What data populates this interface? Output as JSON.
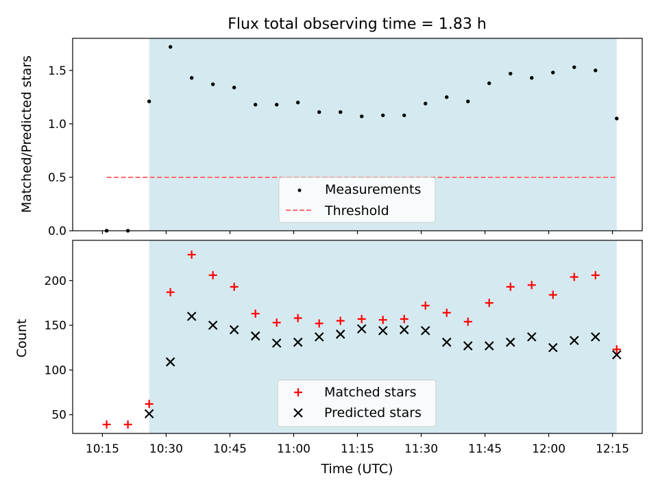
{
  "figure": {
    "title": "Flux total observing time = 1.83 h",
    "xlabel": "Time (UTC)",
    "x_ticks": [
      "10:15",
      "10:30",
      "10:45",
      "11:00",
      "11:15",
      "11:30",
      "11:45",
      "12:00",
      "12:15"
    ],
    "shaded_color": "#d5eaf0",
    "shaded_range": [
      "10:26",
      "12:16"
    ]
  },
  "chart_data": [
    {
      "type": "scatter",
      "panel": "top",
      "ylabel": "Matched/Predicted stars",
      "ylim": [
        0,
        1.8
      ],
      "y_ticks": [
        "0.0",
        "0.5",
        "1.0",
        "1.5"
      ],
      "legend_placement": "lower-center",
      "x": [
        "10:16",
        "10:21",
        "10:26",
        "10:31",
        "10:36",
        "10:41",
        "10:46",
        "10:51",
        "10:56",
        "11:01",
        "11:06",
        "11:11",
        "11:16",
        "11:21",
        "11:26",
        "11:31",
        "11:36",
        "11:41",
        "11:46",
        "11:51",
        "11:56",
        "12:01",
        "12:06",
        "12:11",
        "12:16"
      ],
      "series": [
        {
          "name": "Measurements",
          "marker": "dot",
          "color": "#000000",
          "values": [
            0.0,
            0.0,
            1.21,
            1.72,
            1.43,
            1.37,
            1.34,
            1.18,
            1.18,
            1.2,
            1.11,
            1.11,
            1.07,
            1.08,
            1.08,
            1.19,
            1.25,
            1.21,
            1.38,
            1.47,
            1.43,
            1.48,
            1.53,
            1.5,
            1.05
          ]
        },
        {
          "name": "Threshold",
          "marker": "dashed-line",
          "color": "#ff6b6b",
          "x": [
            "10:16",
            "12:16"
          ],
          "values": [
            0.5,
            0.5
          ]
        }
      ]
    },
    {
      "type": "scatter",
      "panel": "bottom",
      "ylabel": "Count",
      "ylim": [
        29,
        245
      ],
      "y_ticks": [
        "50",
        "100",
        "150",
        "200"
      ],
      "legend_placement": "lower-center",
      "x": [
        "10:16",
        "10:21",
        "10:26",
        "10:31",
        "10:36",
        "10:41",
        "10:46",
        "10:51",
        "10:56",
        "11:01",
        "11:06",
        "11:11",
        "11:16",
        "11:21",
        "11:26",
        "11:31",
        "11:36",
        "11:41",
        "11:46",
        "11:51",
        "11:56",
        "12:01",
        "12:06",
        "12:11",
        "12:16"
      ],
      "series": [
        {
          "name": "Matched stars",
          "marker": "plus",
          "color": "#ff0000",
          "values": [
            39,
            39,
            62,
            187,
            229,
            206,
            193,
            163,
            153,
            158,
            152,
            155,
            157,
            156,
            157,
            172,
            164,
            154,
            175,
            193,
            195,
            184,
            204,
            206,
            123
          ]
        },
        {
          "name": "Predicted stars",
          "marker": "x",
          "color": "#000000",
          "values": [
            null,
            null,
            51,
            109,
            160,
            150,
            145,
            138,
            130,
            131,
            137,
            140,
            146,
            144,
            145,
            144,
            131,
            127,
            127,
            131,
            137,
            125,
            133,
            137,
            117
          ]
        }
      ]
    }
  ]
}
